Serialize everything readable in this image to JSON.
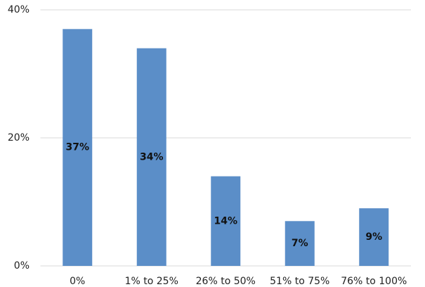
{
  "chart_data": {
    "type": "bar",
    "categories": [
      "0%",
      "1% to 25%",
      "26% to 50%",
      "51% to 75%",
      "76% to 100%"
    ],
    "values": [
      37,
      34,
      14,
      7,
      9
    ],
    "value_labels": [
      "37%",
      "34%",
      "14%",
      "7%",
      "9%"
    ],
    "color": "#5b8ec8",
    "ylim": [
      0,
      40
    ],
    "yticks": [
      {
        "value": 0,
        "label": "0%"
      },
      {
        "value": 20,
        "label": "20%"
      },
      {
        "value": 40,
        "label": "40%"
      }
    ],
    "grid": true
  }
}
